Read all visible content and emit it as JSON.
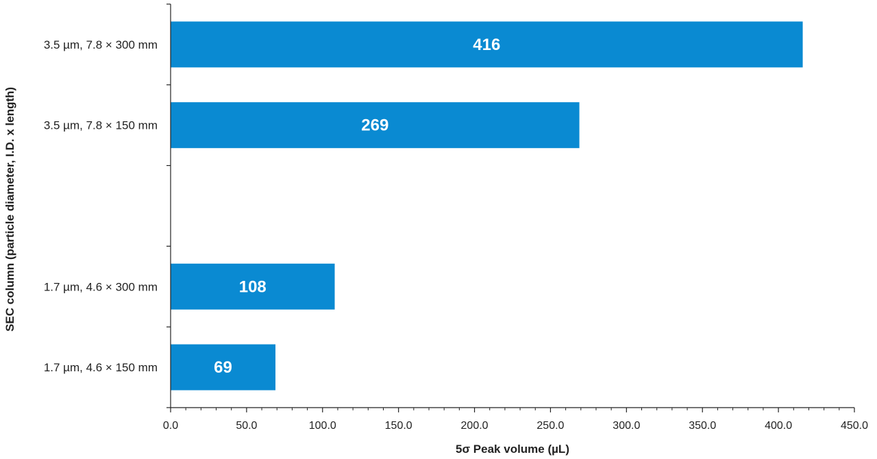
{
  "chart_data": {
    "type": "bar",
    "orientation": "horizontal",
    "title": "",
    "categories": [
      "3.5 µm, 7.8 × 300 mm",
      "3.5 µm, 7.8 × 150 mm",
      "",
      "1.7 µm, 4.6 × 300 mm",
      "1.7 µm, 4.6 × 150 mm"
    ],
    "values": [
      416,
      269,
      null,
      108,
      69
    ],
    "data_labels": [
      "416",
      "269",
      "",
      "108",
      "69"
    ],
    "xlabel": "5σ Peak volume (µL)",
    "ylabel": "SEC column (particle diameter, I.D. x length)",
    "xlim": [
      0,
      450
    ],
    "xticks": [
      "0.0",
      "50.0",
      "100.0",
      "150.0",
      "200.0",
      "250.0",
      "300.0",
      "350.0",
      "400.0",
      "450.0"
    ],
    "bar_color": "#0a8ad2",
    "grid": false,
    "legend": "none"
  }
}
